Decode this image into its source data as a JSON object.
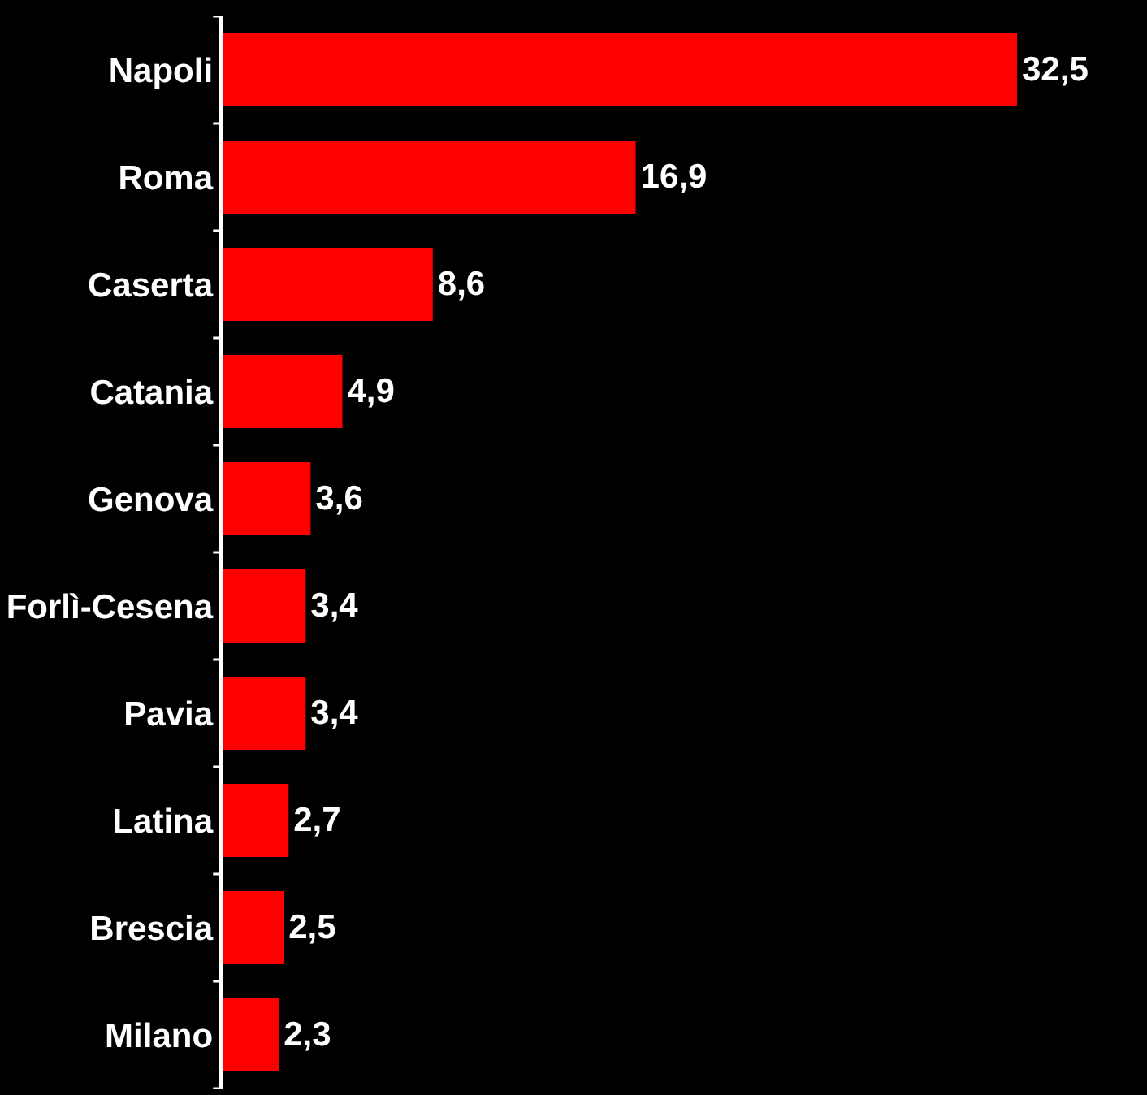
{
  "chart_data": {
    "type": "bar",
    "orientation": "horizontal",
    "categories": [
      "Napoli",
      "Roma",
      "Caserta",
      "Catania",
      "Genova",
      "Forlì-Cesena",
      "Pavia",
      "Latina",
      "Brescia",
      "Milano"
    ],
    "values": [
      32.5,
      16.9,
      8.6,
      4.9,
      3.6,
      3.4,
      3.4,
      2.7,
      2.5,
      2.3
    ],
    "value_labels": [
      "32,5",
      "16,9",
      "8,6",
      "4,9",
      "3,6",
      "3,4",
      "3,4",
      "2,7",
      "2,5",
      "2,3"
    ],
    "color": "#ff0000",
    "legend": false
  }
}
